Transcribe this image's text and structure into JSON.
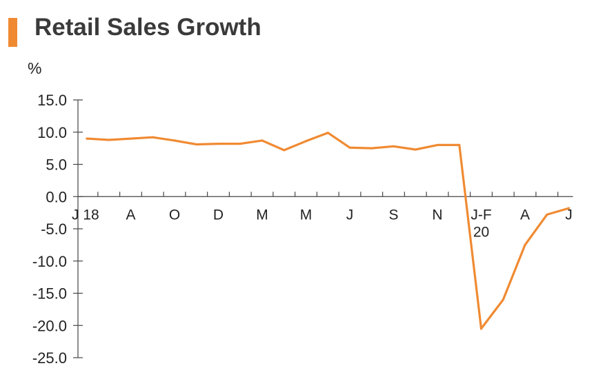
{
  "chart_data": {
    "type": "line",
    "title": "Retail Sales Growth",
    "ylabel": "%",
    "ylim": [
      -25,
      15
    ],
    "yticks": [
      15,
      10,
      5,
      0,
      -5,
      -10,
      -15,
      -20,
      -25
    ],
    "ytick_labels": [
      "15.0",
      "10.0",
      "5.0",
      "0.0",
      "-5.0",
      "-10.0",
      "-15.0",
      "-20.0",
      "-25.0"
    ],
    "x_tick_labels": [
      {
        "label": "J 18",
        "index": 0
      },
      {
        "label": "A",
        "index": 2
      },
      {
        "label": "O",
        "index": 4
      },
      {
        "label": "D",
        "index": 6
      },
      {
        "label": "M",
        "index": 8
      },
      {
        "label": "M",
        "index": 10
      },
      {
        "label": "J",
        "index": 12
      },
      {
        "label": "S",
        "index": 14
      },
      {
        "label": "N",
        "index": 16
      },
      {
        "label": "J-F\n20",
        "index": 18
      },
      {
        "label": "A",
        "index": 20
      },
      {
        "label": "J",
        "index": 22
      }
    ],
    "grid": false,
    "series": [
      {
        "color": "#f08a32",
        "values": [
          9.0,
          8.8,
          9.0,
          9.2,
          8.7,
          8.1,
          8.2,
          8.2,
          8.7,
          7.2,
          8.6,
          9.9,
          7.6,
          7.5,
          7.8,
          7.3,
          8.0,
          8.0,
          -20.5,
          -16.0,
          -7.5,
          -2.8,
          -1.8
        ]
      }
    ]
  },
  "colors": {
    "accent": "#f08a32",
    "axis": "#444444"
  }
}
